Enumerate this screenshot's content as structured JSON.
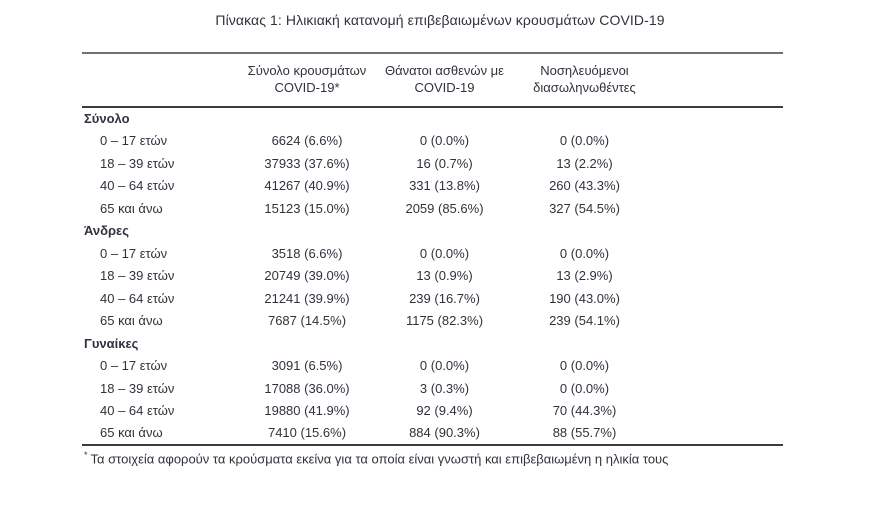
{
  "title": "Πίνακας 1: Ηλικιακή κατανομή επιβεβαιωμένων κρουσμάτων COVID-19",
  "colors": {
    "text": "#30323d",
    "rule_top": "#707070",
    "rule_dark": "#3d3d3d",
    "background": "#ffffff"
  },
  "table": {
    "columns": [
      {
        "line1": "Σύνολο κρουσμάτων",
        "line2": "COVID-19*"
      },
      {
        "line1": "Θάνατοι ασθενών με",
        "line2": "COVID-19"
      },
      {
        "line1": "Νοσηλευόμενοι",
        "line2": "διασωληνωθέντες"
      }
    ],
    "sections": [
      {
        "label": "Σύνολο",
        "rows": [
          {
            "label": "0 – 17 ετών",
            "values": [
              "6624 (6.6%)",
              "0 (0.0%)",
              "0 (0.0%)"
            ]
          },
          {
            "label": "18 – 39 ετών",
            "values": [
              "37933 (37.6%)",
              "16 (0.7%)",
              "13 (2.2%)"
            ]
          },
          {
            "label": "40 – 64 ετών",
            "values": [
              "41267 (40.9%)",
              "331 (13.8%)",
              "260 (43.3%)"
            ]
          },
          {
            "label": "65 και άνω",
            "values": [
              "15123 (15.0%)",
              "2059 (85.6%)",
              "327 (54.5%)"
            ]
          }
        ]
      },
      {
        "label": "Άνδρες",
        "rows": [
          {
            "label": "0 – 17 ετών",
            "values": [
              "3518 (6.6%)",
              "0 (0.0%)",
              "0 (0.0%)"
            ]
          },
          {
            "label": "18 – 39 ετών",
            "values": [
              "20749 (39.0%)",
              "13 (0.9%)",
              "13 (2.9%)"
            ]
          },
          {
            "label": "40 – 64 ετών",
            "values": [
              "21241 (39.9%)",
              "239 (16.7%)",
              "190 (43.0%)"
            ]
          },
          {
            "label": "65 και άνω",
            "values": [
              "7687 (14.5%)",
              "1175 (82.3%)",
              "239 (54.1%)"
            ]
          }
        ]
      },
      {
        "label": "Γυναίκες",
        "rows": [
          {
            "label": "0 – 17 ετών",
            "values": [
              "3091 (6.5%)",
              "0 (0.0%)",
              "0 (0.0%)"
            ]
          },
          {
            "label": "18 – 39 ετών",
            "values": [
              "17088 (36.0%)",
              "3 (0.3%)",
              "0 (0.0%)"
            ]
          },
          {
            "label": "40 – 64 ετών",
            "values": [
              "19880 (41.9%)",
              "92 (9.4%)",
              "70 (44.3%)"
            ]
          },
          {
            "label": "65 και άνω",
            "values": [
              "7410 (15.6%)",
              "884 (90.3%)",
              "88 (55.7%)"
            ]
          }
        ]
      }
    ]
  },
  "footnote": {
    "marker": "*",
    "text": "Τα στοιχεία αφορούν τα κρούσματα εκείνα για τα οποία είναι γνωστή και επιβεβαιωμένη η ηλικία τους"
  }
}
